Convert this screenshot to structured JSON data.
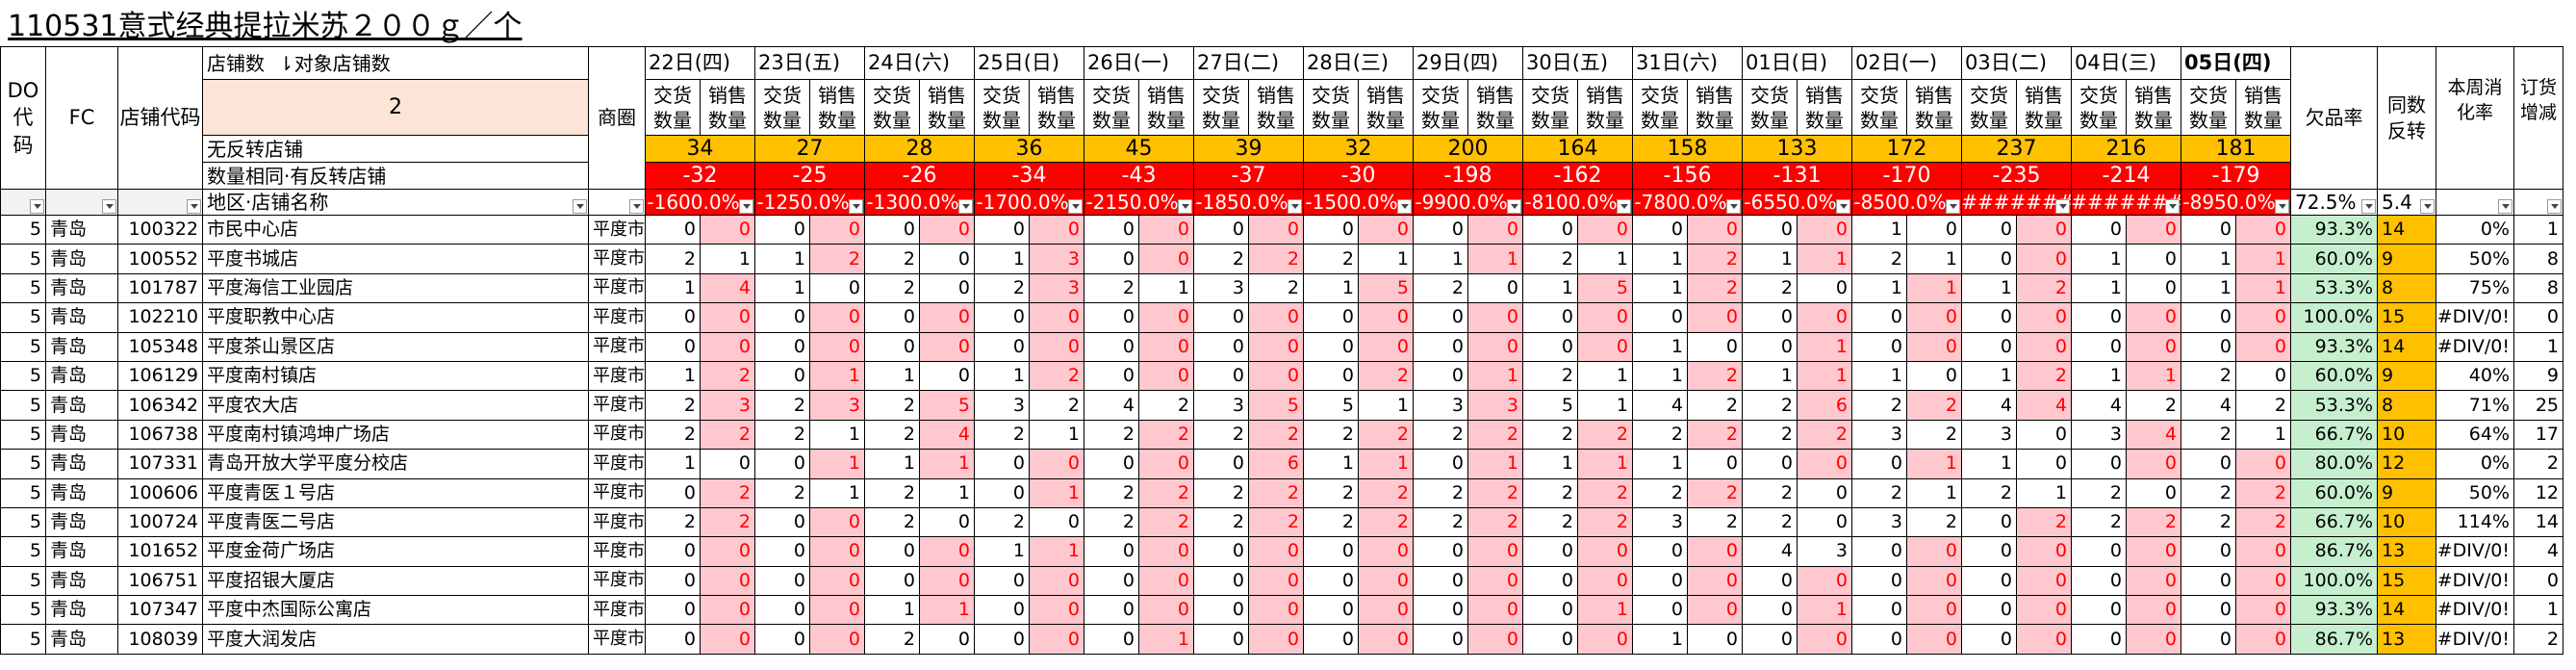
{
  "title": "110531意式经典提拉米苏２００ｇ／个",
  "headers": {
    "do_code": "DO\n代\n码",
    "fc": "FC",
    "store_code": "店铺代码",
    "store_count_label": "店铺数",
    "target_store_count_label": "⇂对象店铺数",
    "target_store_count": "2",
    "district": "商圈",
    "no_reversal_label": "无反转店铺",
    "same_qty_label": "数量相同·有反转店铺",
    "area_store_label": "地区·店铺名称",
    "delivery_qty": "交货\n数量",
    "sales_qty": "销售\n数量",
    "shortage_rate": "欠品率",
    "same_reversal": "同数\n反转",
    "weekly_rate": "本周消\n化率",
    "order_change": "订货\n增减"
  },
  "dates": [
    "22日(四)",
    "23日(五)",
    "24日(六)",
    "25日(日)",
    "26日(一)",
    "27日(二)",
    "28日(三)",
    "29日(四)",
    "30日(五)",
    "31日(六)",
    "01日(日)",
    "02日(一)",
    "03日(二)",
    "04日(三)",
    "05日(四)"
  ],
  "no_reversal_counts": [
    "34",
    "27",
    "28",
    "36",
    "45",
    "39",
    "32",
    "200",
    "164",
    "158",
    "133",
    "172",
    "237",
    "216",
    "181"
  ],
  "same_reversal_counts": [
    "-32",
    "-25",
    "-26",
    "-34",
    "-43",
    "-37",
    "-30",
    "-198",
    "-162",
    "-156",
    "-131",
    "-170",
    "-235",
    "-214",
    "-179"
  ],
  "pct_row": [
    "-1600.0%",
    "-1250.0%",
    "-1300.0%",
    "-1700.0%",
    "-2150.0%",
    "-1850.0%",
    "-1500.0%",
    "-9900.0%",
    "-8100.0%",
    "-7800.0%",
    "-6550.0%",
    "-8500.0%",
    "########",
    "########",
    "-8950.0%"
  ],
  "summary": {
    "shortage": "72.5%",
    "reversal": "5.4"
  },
  "rows": [
    {
      "do": "5",
      "fc": "青岛",
      "code": "100322",
      "name": "市民中心店",
      "district": "平度市",
      "d": [
        0,
        0,
        0,
        0,
        0,
        0,
        0,
        0,
        0,
        0,
        0,
        0,
        0,
        0,
        0,
        0,
        0,
        0,
        0,
        0,
        0,
        0,
        1,
        0,
        0,
        0,
        0,
        0,
        0,
        0
      ],
      "rate": "93.3%",
      "rev": "14",
      "wk": "0%",
      "chg": "1"
    },
    {
      "do": "5",
      "fc": "青岛",
      "code": "100552",
      "name": "平度书城店",
      "district": "平度市",
      "d": [
        2,
        1,
        1,
        2,
        2,
        0,
        1,
        3,
        0,
        0,
        2,
        2,
        2,
        1,
        1,
        1,
        2,
        1,
        1,
        2,
        1,
        1,
        2,
        1,
        0,
        0,
        1,
        0,
        1,
        1
      ],
      "rate": "60.0%",
      "rev": "9",
      "wk": "50%",
      "chg": "8"
    },
    {
      "do": "5",
      "fc": "青岛",
      "code": "101787",
      "name": "平度海信工业园店",
      "district": "平度市",
      "d": [
        1,
        4,
        1,
        0,
        2,
        0,
        2,
        3,
        2,
        1,
        3,
        2,
        1,
        5,
        2,
        0,
        1,
        5,
        1,
        2,
        2,
        0,
        1,
        1,
        1,
        2,
        1,
        0,
        1,
        1
      ],
      "rate": "53.3%",
      "rev": "8",
      "wk": "75%",
      "chg": "8"
    },
    {
      "do": "5",
      "fc": "青岛",
      "code": "102210",
      "name": "平度职教中心店",
      "district": "平度市",
      "d": [
        0,
        0,
        0,
        0,
        0,
        0,
        0,
        0,
        0,
        0,
        0,
        0,
        0,
        0,
        0,
        0,
        0,
        0,
        0,
        0,
        0,
        0,
        0,
        0,
        0,
        0,
        0,
        0,
        0,
        0
      ],
      "rate": "100.0%",
      "rev": "15",
      "wk": "#DIV/0!",
      "chg": "0"
    },
    {
      "do": "5",
      "fc": "青岛",
      "code": "105348",
      "name": "平度茶山景区店",
      "district": "平度市",
      "d": [
        0,
        0,
        0,
        0,
        0,
        0,
        0,
        0,
        0,
        0,
        0,
        0,
        0,
        0,
        0,
        0,
        0,
        0,
        1,
        0,
        0,
        1,
        0,
        0,
        0,
        0,
        0,
        0,
        0,
        0
      ],
      "rate": "93.3%",
      "rev": "14",
      "wk": "#DIV/0!",
      "chg": "1"
    },
    {
      "do": "5",
      "fc": "青岛",
      "code": "106129",
      "name": "平度南村镇店",
      "district": "平度市",
      "d": [
        1,
        2,
        0,
        1,
        1,
        0,
        1,
        2,
        0,
        0,
        0,
        0,
        0,
        2,
        0,
        1,
        2,
        1,
        1,
        2,
        1,
        1,
        1,
        0,
        1,
        2,
        1,
        1,
        2,
        0
      ],
      "rate": "60.0%",
      "rev": "9",
      "wk": "40%",
      "chg": "9"
    },
    {
      "do": "5",
      "fc": "青岛",
      "code": "106342",
      "name": "平度农大店",
      "district": "平度市",
      "d": [
        2,
        3,
        2,
        3,
        2,
        5,
        3,
        2,
        4,
        2,
        3,
        5,
        5,
        1,
        3,
        3,
        5,
        1,
        4,
        2,
        2,
        6,
        2,
        2,
        4,
        4,
        4,
        2,
        4,
        2
      ],
      "rate": "53.3%",
      "rev": "8",
      "wk": "71%",
      "chg": "25"
    },
    {
      "do": "5",
      "fc": "青岛",
      "code": "106738",
      "name": "平度南村镇鸿坤广场店",
      "district": "平度市",
      "d": [
        2,
        2,
        2,
        1,
        2,
        4,
        2,
        1,
        2,
        2,
        2,
        2,
        2,
        2,
        2,
        2,
        2,
        2,
        2,
        2,
        2,
        2,
        3,
        2,
        3,
        0,
        3,
        4,
        2,
        1
      ],
      "rate": "66.7%",
      "rev": "10",
      "wk": "64%",
      "chg": "17"
    },
    {
      "do": "5",
      "fc": "青岛",
      "code": "107331",
      "name": "青岛开放大学平度分校店",
      "district": "平度市",
      "d": [
        1,
        0,
        0,
        1,
        1,
        1,
        0,
        0,
        0,
        0,
        0,
        6,
        1,
        1,
        0,
        1,
        1,
        1,
        1,
        0,
        0,
        0,
        0,
        1,
        1,
        0,
        0,
        0,
        0,
        0
      ],
      "rate": "80.0%",
      "rev": "12",
      "wk": "0%",
      "chg": "2"
    },
    {
      "do": "5",
      "fc": "青岛",
      "code": "100606",
      "name": "平度青医１号店",
      "district": "平度市",
      "d": [
        0,
        2,
        2,
        1,
        2,
        1,
        0,
        1,
        2,
        2,
        2,
        2,
        2,
        2,
        2,
        2,
        2,
        2,
        2,
        2,
        2,
        0,
        2,
        1,
        2,
        1,
        2,
        0,
        2,
        2
      ],
      "rate": "60.0%",
      "rev": "9",
      "wk": "50%",
      "chg": "12"
    },
    {
      "do": "5",
      "fc": "青岛",
      "code": "100724",
      "name": "平度青医二号店",
      "district": "平度市",
      "d": [
        2,
        2,
        0,
        0,
        2,
        0,
        2,
        0,
        2,
        2,
        2,
        2,
        2,
        2,
        2,
        2,
        2,
        2,
        3,
        2,
        2,
        0,
        3,
        2,
        0,
        2,
        2,
        2,
        2,
        2
      ],
      "rate": "66.7%",
      "rev": "10",
      "wk": "114%",
      "chg": "14"
    },
    {
      "do": "5",
      "fc": "青岛",
      "code": "101652",
      "name": "平度金荷广场店",
      "district": "平度市",
      "d": [
        0,
        0,
        0,
        0,
        0,
        0,
        1,
        1,
        0,
        0,
        0,
        0,
        0,
        0,
        0,
        0,
        0,
        0,
        0,
        0,
        4,
        3,
        0,
        0,
        0,
        0,
        0,
        0,
        0,
        0
      ],
      "rate": "86.7%",
      "rev": "13",
      "wk": "#DIV/0!",
      "chg": "4"
    },
    {
      "do": "5",
      "fc": "青岛",
      "code": "106751",
      "name": "平度招银大厦店",
      "district": "平度市",
      "d": [
        0,
        0,
        0,
        0,
        0,
        0,
        0,
        0,
        0,
        0,
        0,
        0,
        0,
        0,
        0,
        0,
        0,
        0,
        0,
        0,
        0,
        0,
        0,
        0,
        0,
        0,
        0,
        0,
        0,
        0
      ],
      "rate": "100.0%",
      "rev": "15",
      "wk": "#DIV/0!",
      "chg": "0"
    },
    {
      "do": "5",
      "fc": "青岛",
      "code": "107347",
      "name": "平度中杰国际公寓店",
      "district": "平度市",
      "d": [
        0,
        0,
        0,
        0,
        1,
        1,
        0,
        0,
        0,
        0,
        0,
        0,
        0,
        0,
        0,
        0,
        0,
        1,
        0,
        0,
        0,
        1,
        0,
        0,
        0,
        0,
        0,
        0,
        0,
        0
      ],
      "rate": "93.3%",
      "rev": "14",
      "wk": "#DIV/0!",
      "chg": "1"
    },
    {
      "do": "5",
      "fc": "青岛",
      "code": "108039",
      "name": "平度大润发店",
      "district": "平度市",
      "d": [
        0,
        0,
        0,
        0,
        2,
        0,
        0,
        0,
        0,
        1,
        0,
        0,
        0,
        0,
        0,
        0,
        0,
        0,
        1,
        0,
        0,
        0,
        0,
        0,
        0,
        0,
        0,
        0,
        0,
        0
      ],
      "rate": "86.7%",
      "rev": "13",
      "wk": "#DIV/0!",
      "chg": "2"
    }
  ]
}
